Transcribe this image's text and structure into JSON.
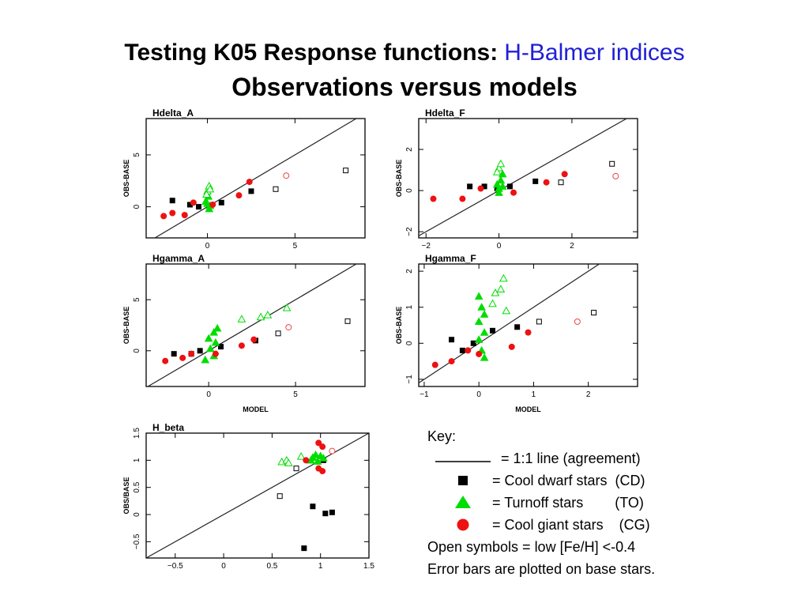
{
  "title": {
    "main": "Testing K05 Response functions:",
    "highlight": "H-Balmer indices",
    "subtitle": "Observations versus models"
  },
  "key": {
    "heading": "Key:",
    "items": [
      {
        "symbol": "line",
        "label": "= 1:1 line (agreement)"
      },
      {
        "symbol": "square",
        "label": "= Cool dwarf stars  (CD)"
      },
      {
        "symbol": "triangle",
        "label": "= Turnoff stars        (TO)"
      },
      {
        "symbol": "circle",
        "label": "= Cool giant stars    (CG)"
      }
    ],
    "note1": "Open symbols = low [Fe/H] <-0.4",
    "note2": "Error bars are plotted on base stars."
  },
  "colors": {
    "dwarf": "#000000",
    "turnoff": "#00dd00",
    "giant": "#ee1111",
    "giant_open": "#ee4444",
    "title_blue": "#1f1fd6"
  },
  "chart_data": [
    {
      "type": "scatter",
      "title": "Hdelta_A",
      "xlabel": "",
      "ylabel": "OBS-BASE",
      "xlim": [
        -3.5,
        9
      ],
      "ylim": [
        -3,
        8.5
      ],
      "xticks": [
        0,
        5
      ],
      "yticks": [
        0,
        5
      ],
      "series": [
        {
          "name": "CD",
          "shape": "square",
          "filled": true,
          "points": [
            [
              -2,
              0.6
            ],
            [
              -1,
              0.2
            ],
            [
              -0.5,
              0
            ],
            [
              0.8,
              0.4
            ],
            [
              2.5,
              1.5
            ]
          ]
        },
        {
          "name": "TO",
          "shape": "triangle",
          "filled": true,
          "points": [
            [
              0,
              0.3
            ],
            [
              0.1,
              -0.2
            ],
            [
              -0.1,
              0.5
            ],
            [
              0.05,
              1.0
            ],
            [
              0.15,
              0.1
            ]
          ]
        },
        {
          "name": "TO",
          "shape": "triangle",
          "filled": false,
          "points": [
            [
              0,
              1.5
            ],
            [
              0.1,
              2.0
            ],
            [
              -0.05,
              1.2
            ],
            [
              0.15,
              1.7
            ]
          ]
        },
        {
          "name": "CG",
          "shape": "circle",
          "filled": true,
          "points": [
            [
              -2.5,
              -0.9
            ],
            [
              -2,
              -0.6
            ],
            [
              -1.3,
              -0.8
            ],
            [
              -0.8,
              0.4
            ],
            [
              0.3,
              0.2
            ],
            [
              1.8,
              1.1
            ],
            [
              2.4,
              2.4
            ]
          ]
        },
        {
          "name": "CG",
          "shape": "circle",
          "filled": false,
          "points": [
            [
              4.5,
              3.0
            ]
          ]
        },
        {
          "name": "CD",
          "shape": "square",
          "filled": false,
          "points": [
            [
              3.9,
              1.7
            ],
            [
              7.9,
              3.5
            ]
          ]
        }
      ]
    },
    {
      "type": "scatter",
      "title": "Hdelta_F",
      "xlabel": "",
      "ylabel": "OBS-BASE",
      "xlim": [
        -2.2,
        3.8
      ],
      "ylim": [
        -2.3,
        3.5
      ],
      "xticks": [
        -2,
        0,
        2
      ],
      "yticks": [
        -2,
        0,
        2
      ],
      "series": [
        {
          "name": "CD",
          "shape": "square",
          "filled": true,
          "points": [
            [
              -0.8,
              0.2
            ],
            [
              -0.4,
              0.2
            ],
            [
              -0.05,
              0.1
            ],
            [
              0.3,
              0.2
            ],
            [
              1.0,
              0.45
            ]
          ]
        },
        {
          "name": "TO",
          "shape": "triangle",
          "filled": true,
          "points": [
            [
              0,
              0.1
            ],
            [
              0.05,
              0.5
            ],
            [
              -0.05,
              0.3
            ],
            [
              0.1,
              0.8
            ],
            [
              0,
              -0.1
            ],
            [
              0.1,
              0.2
            ]
          ]
        },
        {
          "name": "TO",
          "shape": "triangle",
          "filled": false,
          "points": [
            [
              0,
              1.1
            ],
            [
              0.05,
              1.3
            ],
            [
              -0.05,
              0.9
            ]
          ]
        },
        {
          "name": "CG",
          "shape": "circle",
          "filled": true,
          "points": [
            [
              -1.8,
              -0.4
            ],
            [
              -1.0,
              -0.4
            ],
            [
              -0.5,
              0.1
            ],
            [
              0.4,
              -0.1
            ],
            [
              1.3,
              0.4
            ],
            [
              1.8,
              0.8
            ]
          ]
        },
        {
          "name": "CG",
          "shape": "circle",
          "filled": false,
          "points": [
            [
              3.2,
              0.7
            ]
          ]
        },
        {
          "name": "CD",
          "shape": "square",
          "filled": false,
          "points": [
            [
              1.7,
              0.4
            ],
            [
              3.1,
              1.3
            ]
          ]
        }
      ]
    },
    {
      "type": "scatter",
      "title": "Hgamma_A",
      "xlabel": "MODEL",
      "ylabel": "OBS-BASE",
      "xlim": [
        -3.6,
        9
      ],
      "ylim": [
        -3.5,
        8.5
      ],
      "xticks": [
        0,
        5
      ],
      "yticks": [
        0,
        5
      ],
      "series": [
        {
          "name": "CD",
          "shape": "square",
          "filled": true,
          "points": [
            [
              -2,
              -0.3
            ],
            [
              -1,
              -0.3
            ],
            [
              -0.5,
              0
            ],
            [
              0.7,
              0.4
            ],
            [
              2.7,
              1.0
            ]
          ]
        },
        {
          "name": "TO",
          "shape": "triangle",
          "filled": true,
          "points": [
            [
              0,
              1.2
            ],
            [
              0.3,
              1.8
            ],
            [
              0.5,
              2.2
            ],
            [
              0.1,
              0.2
            ],
            [
              0.3,
              -0.5
            ],
            [
              0.4,
              0.8
            ],
            [
              -0.2,
              -0.9
            ]
          ]
        },
        {
          "name": "TO",
          "shape": "triangle",
          "filled": false,
          "points": [
            [
              1.9,
              3.1
            ],
            [
              3.0,
              3.3
            ],
            [
              3.4,
              3.5
            ],
            [
              4.5,
              4.2
            ]
          ]
        },
        {
          "name": "CG",
          "shape": "circle",
          "filled": true,
          "points": [
            [
              -2.5,
              -1.0
            ],
            [
              -1.5,
              -0.7
            ],
            [
              -1.0,
              -0.3
            ],
            [
              0.4,
              -0.3
            ],
            [
              1.9,
              0.5
            ],
            [
              2.6,
              1.1
            ]
          ]
        },
        {
          "name": "CG",
          "shape": "circle",
          "filled": false,
          "points": [
            [
              4.6,
              2.3
            ]
          ]
        },
        {
          "name": "CD",
          "shape": "square",
          "filled": false,
          "points": [
            [
              4.0,
              1.7
            ],
            [
              8.0,
              2.9
            ]
          ]
        }
      ]
    },
    {
      "type": "scatter",
      "title": "Hgamma_F",
      "xlabel": "MODEL",
      "ylabel": "OBS-BASE",
      "xlim": [
        -1.1,
        2.9
      ],
      "ylim": [
        -1.2,
        2.2
      ],
      "xticks": [
        -1,
        0,
        1,
        2
      ],
      "yticks": [
        -1,
        0,
        1,
        2
      ],
      "series": [
        {
          "name": "CD",
          "shape": "square",
          "filled": true,
          "points": [
            [
              -0.5,
              0.1
            ],
            [
              -0.3,
              -0.2
            ],
            [
              -0.1,
              0
            ],
            [
              0.25,
              0.35
            ],
            [
              0.7,
              0.45
            ]
          ]
        },
        {
          "name": "TO",
          "shape": "triangle",
          "filled": true,
          "points": [
            [
              0,
              1.3
            ],
            [
              0.05,
              1.0
            ],
            [
              0.1,
              0.8
            ],
            [
              0,
              0.6
            ],
            [
              0.1,
              0.3
            ],
            [
              0,
              0.1
            ],
            [
              0.05,
              -0.2
            ],
            [
              0.1,
              -0.4
            ]
          ]
        },
        {
          "name": "TO",
          "shape": "triangle",
          "filled": false,
          "points": [
            [
              0.3,
              1.4
            ],
            [
              0.4,
              1.5
            ],
            [
              0.45,
              1.8
            ],
            [
              0.5,
              0.9
            ],
            [
              0.25,
              1.1
            ]
          ]
        },
        {
          "name": "CG",
          "shape": "circle",
          "filled": true,
          "points": [
            [
              -0.8,
              -0.6
            ],
            [
              -0.5,
              -0.5
            ],
            [
              -0.2,
              -0.2
            ],
            [
              0,
              -0.3
            ],
            [
              0.6,
              -0.1
            ],
            [
              0.9,
              0.3
            ]
          ]
        },
        {
          "name": "CG",
          "shape": "circle",
          "filled": false,
          "points": [
            [
              1.8,
              0.6
            ]
          ]
        },
        {
          "name": "CD",
          "shape": "square",
          "filled": false,
          "points": [
            [
              1.1,
              0.6
            ],
            [
              2.1,
              0.85
            ]
          ]
        }
      ]
    },
    {
      "type": "scatter",
      "title": "H_beta",
      "xlabel": "",
      "ylabel": "OBS/BASE",
      "xlim": [
        -0.8,
        1.5
      ],
      "ylim": [
        -0.8,
        1.5
      ],
      "xticks": [
        -0.5,
        0,
        0.5,
        1,
        1.5
      ],
      "yticks": [
        -0.5,
        0,
        0.5,
        1,
        1.5
      ],
      "series": [
        {
          "name": "CD",
          "shape": "square",
          "filled": true,
          "points": [
            [
              0.92,
              0.15
            ],
            [
              1.05,
              0.02
            ],
            [
              1.12,
              0.04
            ],
            [
              0.83,
              -0.62
            ],
            [
              1.03,
              1.0
            ]
          ]
        },
        {
          "name": "TO",
          "shape": "triangle",
          "filled": true,
          "points": [
            [
              0.92,
              1.05
            ],
            [
              0.95,
              1.1
            ],
            [
              1.0,
              1.08
            ],
            [
              0.97,
              0.98
            ],
            [
              1.03,
              1.04
            ],
            [
              0.9,
              1.0
            ]
          ]
        },
        {
          "name": "TO",
          "shape": "triangle",
          "filled": false,
          "points": [
            [
              0.6,
              0.97
            ],
            [
              0.65,
              1.0
            ],
            [
              0.8,
              1.07
            ],
            [
              0.67,
              0.95
            ]
          ]
        },
        {
          "name": "CG",
          "shape": "circle",
          "filled": true,
          "points": [
            [
              0.98,
              1.32
            ],
            [
              1.02,
              1.25
            ],
            [
              0.85,
              1.0
            ],
            [
              0.98,
              0.85
            ],
            [
              1.02,
              0.8
            ]
          ]
        },
        {
          "name": "CG",
          "shape": "circle",
          "filled": false,
          "points": [
            [
              1.12,
              1.17
            ]
          ]
        },
        {
          "name": "CD",
          "shape": "square",
          "filled": false,
          "points": [
            [
              0.58,
              0.34
            ],
            [
              0.75,
              0.85
            ]
          ]
        }
      ]
    }
  ]
}
